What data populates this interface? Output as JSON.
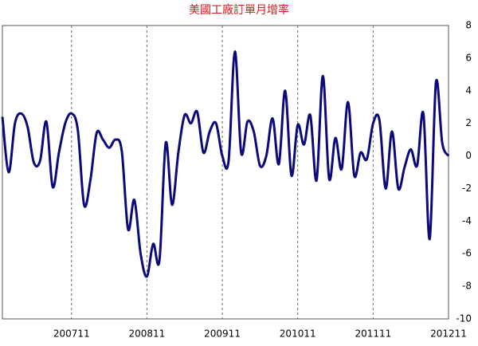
{
  "chart_data": {
    "type": "line",
    "title": "美國工廠訂單月增率",
    "categories": [
      null,
      null,
      null,
      null,
      null,
      null,
      null,
      null,
      null,
      null,
      null,
      "200711",
      null,
      null,
      null,
      null,
      null,
      null,
      null,
      null,
      null,
      null,
      null,
      "200811",
      null,
      null,
      null,
      null,
      null,
      null,
      null,
      null,
      null,
      null,
      null,
      "200911",
      null,
      null,
      null,
      null,
      null,
      null,
      null,
      null,
      null,
      null,
      null,
      "201011",
      null,
      null,
      null,
      null,
      null,
      null,
      null,
      null,
      null,
      null,
      null,
      "201111",
      null,
      null,
      null,
      null,
      null,
      null,
      null,
      null,
      null,
      null,
      null,
      "201211"
    ],
    "series": [
      {
        "color": "#0a0a7a",
        "values": [
          2.4,
          -1.0,
          2.0,
          2.6,
          1.8,
          -0.4,
          -0.3,
          2.1,
          -1.9,
          0.2,
          2.0,
          2.6,
          1.6,
          -3.0,
          -1.5,
          1.4,
          1.0,
          0.5,
          1.0,
          0.3,
          -4.5,
          -2.7,
          -6.0,
          -7.4,
          -5.4,
          -6.4,
          0.8,
          -3.0,
          0.2,
          2.5,
          2.0,
          2.7,
          0.2,
          1.5,
          2.0,
          0.0,
          -0.3,
          6.4,
          0.2,
          2.1,
          1.5,
          -0.6,
          0.0,
          2.3,
          -0.5,
          4.0,
          -1.2,
          1.9,
          0.7,
          2.5,
          -1.5,
          4.9,
          -1.4,
          1.1,
          -0.8,
          3.3,
          -1.2,
          0.2,
          -0.2,
          2.0,
          2.2,
          -2.0,
          1.5,
          -2.0,
          -0.7,
          0.4,
          -0.6,
          2.6,
          -5.1,
          4.5,
          0.8,
          0.0
        ]
      }
    ],
    "ylim": [
      -10,
      8
    ],
    "yticks": [
      -10,
      -8,
      -6,
      -4,
      -2,
      0,
      2,
      4,
      6,
      8
    ],
    "grid": true
  }
}
